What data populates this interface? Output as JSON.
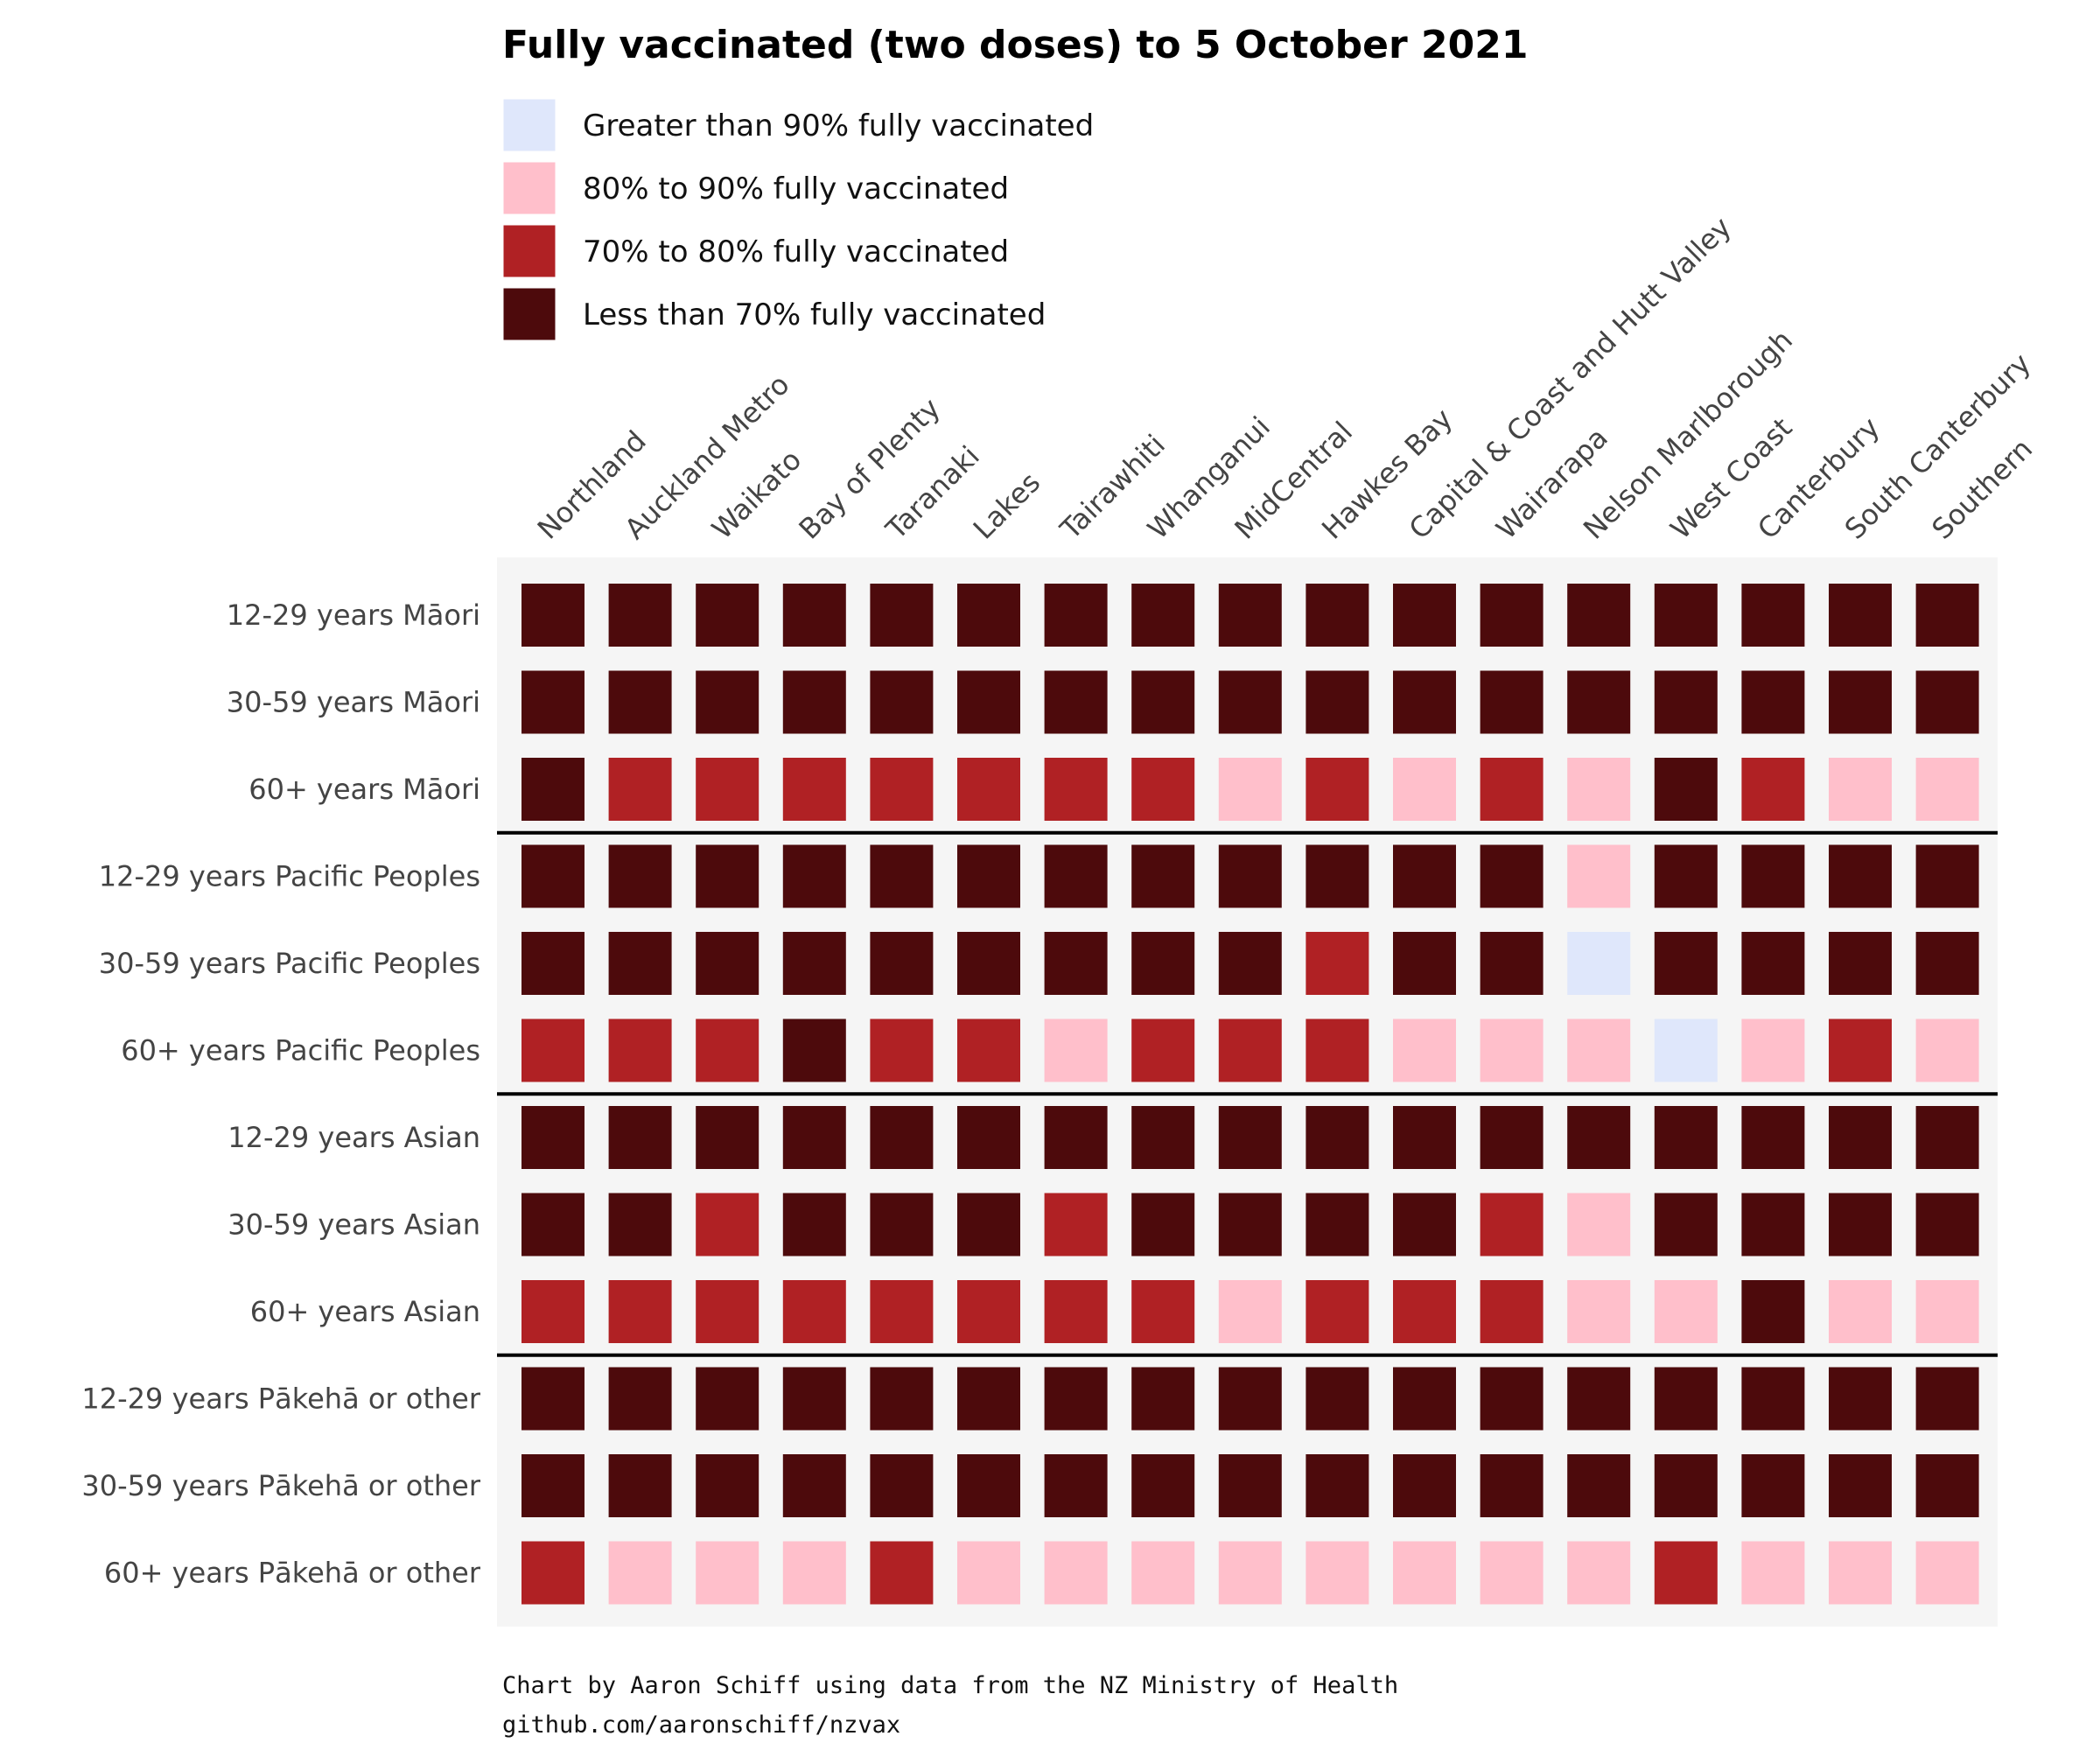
{
  "chart_data": {
    "type": "heatmap",
    "title": "Fully vaccinated (two doses) to 5 October 2021",
    "legend": [
      {
        "key": "gt90",
        "label": "Greater than 90% fully vaccinated",
        "color": "#dfe7fb"
      },
      {
        "key": "80to90",
        "label": "80% to 90% fully vaccinated",
        "color": "#ffbfcb"
      },
      {
        "key": "70to80",
        "label": "70% to 80% fully vaccinated",
        "color": "#b02124"
      },
      {
        "key": "lt70",
        "label": "Less than 70% fully vaccinated",
        "color": "#4d0a0c"
      }
    ],
    "columns": [
      "Northland",
      "Auckland Metro",
      "Waikato",
      "Bay of Plenty",
      "Taranaki",
      "Lakes",
      "Tairawhiti",
      "Whanganui",
      "MidCentral",
      "Hawkes Bay",
      "Capital & Coast and Hutt Valley",
      "Wairarapa",
      "Nelson Marlborough",
      "West Coast",
      "Canterbury",
      "South Canterbury",
      "Southern"
    ],
    "rows": [
      "12-29 years Māori",
      "30-59 years Māori",
      "60+ years Māori",
      "12-29 years Pacific Peoples",
      "30-59 years Pacific Peoples",
      "60+ years Pacific Peoples",
      "12-29 years Asian",
      "30-59 years Asian",
      "60+ years Asian",
      "12-29 years Pākehā or other",
      "30-59 years Pākehā or other",
      "60+ years Pākehā or other"
    ],
    "group_size": 3,
    "values": [
      [
        "lt70",
        "lt70",
        "lt70",
        "lt70",
        "lt70",
        "lt70",
        "lt70",
        "lt70",
        "lt70",
        "lt70",
        "lt70",
        "lt70",
        "lt70",
        "lt70",
        "lt70",
        "lt70",
        "lt70"
      ],
      [
        "lt70",
        "lt70",
        "lt70",
        "lt70",
        "lt70",
        "lt70",
        "lt70",
        "lt70",
        "lt70",
        "lt70",
        "lt70",
        "lt70",
        "lt70",
        "lt70",
        "lt70",
        "lt70",
        "lt70"
      ],
      [
        "lt70",
        "70to80",
        "70to80",
        "70to80",
        "70to80",
        "70to80",
        "70to80",
        "70to80",
        "80to90",
        "70to80",
        "80to90",
        "70to80",
        "80to90",
        "lt70",
        "70to80",
        "80to90",
        "80to90"
      ],
      [
        "lt70",
        "lt70",
        "lt70",
        "lt70",
        "lt70",
        "lt70",
        "lt70",
        "lt70",
        "lt70",
        "lt70",
        "lt70",
        "lt70",
        "80to90",
        "lt70",
        "lt70",
        "lt70",
        "lt70"
      ],
      [
        "lt70",
        "lt70",
        "lt70",
        "lt70",
        "lt70",
        "lt70",
        "lt70",
        "lt70",
        "lt70",
        "70to80",
        "lt70",
        "lt70",
        "gt90",
        "lt70",
        "lt70",
        "lt70",
        "lt70"
      ],
      [
        "70to80",
        "70to80",
        "70to80",
        "lt70",
        "70to80",
        "70to80",
        "80to90",
        "70to80",
        "70to80",
        "70to80",
        "80to90",
        "80to90",
        "80to90",
        "gt90",
        "80to90",
        "70to80",
        "80to90"
      ],
      [
        "lt70",
        "lt70",
        "lt70",
        "lt70",
        "lt70",
        "lt70",
        "lt70",
        "lt70",
        "lt70",
        "lt70",
        "lt70",
        "lt70",
        "lt70",
        "lt70",
        "lt70",
        "lt70",
        "lt70"
      ],
      [
        "lt70",
        "lt70",
        "70to80",
        "lt70",
        "lt70",
        "lt70",
        "70to80",
        "lt70",
        "lt70",
        "lt70",
        "lt70",
        "70to80",
        "80to90",
        "lt70",
        "lt70",
        "lt70",
        "lt70"
      ],
      [
        "70to80",
        "70to80",
        "70to80",
        "70to80",
        "70to80",
        "70to80",
        "70to80",
        "70to80",
        "80to90",
        "70to80",
        "70to80",
        "70to80",
        "80to90",
        "80to90",
        "lt70",
        "80to90",
        "80to90"
      ],
      [
        "lt70",
        "lt70",
        "lt70",
        "lt70",
        "lt70",
        "lt70",
        "lt70",
        "lt70",
        "lt70",
        "lt70",
        "lt70",
        "lt70",
        "lt70",
        "lt70",
        "lt70",
        "lt70",
        "lt70"
      ],
      [
        "lt70",
        "lt70",
        "lt70",
        "lt70",
        "lt70",
        "lt70",
        "lt70",
        "lt70",
        "lt70",
        "lt70",
        "lt70",
        "lt70",
        "lt70",
        "lt70",
        "lt70",
        "lt70",
        "lt70"
      ],
      [
        "70to80",
        "80to90",
        "80to90",
        "80to90",
        "70to80",
        "80to90",
        "80to90",
        "80to90",
        "80to90",
        "80to90",
        "80to90",
        "80to90",
        "80to90",
        "70to80",
        "80to90",
        "80to90",
        "80to90"
      ]
    ],
    "panel_background": "#f5f5f5"
  },
  "caption": {
    "line1": "Chart by Aaron Schiff using data from the NZ Ministry of Health",
    "line2": "github.com/aaronschiff/nzvax"
  }
}
